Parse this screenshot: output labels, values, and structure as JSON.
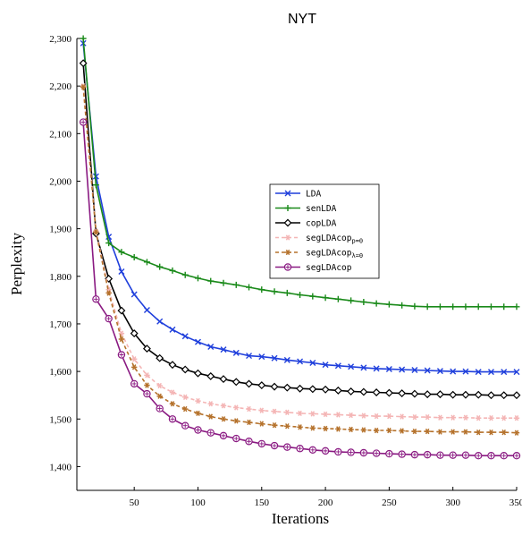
{
  "chart_data": {
    "type": "line",
    "title": "NYT",
    "xlabel": "Iterations",
    "ylabel": "Perplexity",
    "xlim": [
      5,
      350
    ],
    "ylim": [
      1350,
      2300
    ],
    "xticks": [
      50,
      100,
      150,
      200,
      250,
      300,
      350
    ],
    "yticks": [
      1400,
      1500,
      1600,
      1700,
      1800,
      1900,
      2000,
      2100,
      2200,
      2300
    ],
    "xtick_labels": [
      "50",
      "100",
      "150",
      "200",
      "250",
      "300",
      "350"
    ],
    "ytick_labels": [
      "1,400",
      "1,500",
      "1,600",
      "1,700",
      "1,800",
      "1,900",
      "2,000",
      "2,100",
      "2,200",
      "2,300"
    ],
    "grid": false,
    "legend_position": "center-right",
    "x": [
      10,
      20,
      30,
      40,
      50,
      60,
      70,
      80,
      90,
      100,
      110,
      120,
      130,
      140,
      150,
      160,
      170,
      180,
      190,
      200,
      210,
      220,
      230,
      240,
      250,
      260,
      270,
      280,
      290,
      300,
      310,
      320,
      330,
      340,
      350
    ],
    "series": [
      {
        "name": "LDA",
        "color": "#1f3fdc",
        "marker": "x",
        "dashed": false,
        "values": [
          2290,
          2010,
          1883,
          1810,
          1762,
          1729,
          1705,
          1688,
          1674,
          1662,
          1652,
          1646,
          1639,
          1633,
          1631,
          1628,
          1624,
          1621,
          1618,
          1614,
          1612,
          1610,
          1608,
          1606,
          1605,
          1604,
          1603,
          1602,
          1601,
          1600,
          1600,
          1599,
          1599,
          1599,
          1599
        ]
      },
      {
        "name": "senLDA",
        "color": "#1a8a1a",
        "marker": "plus",
        "dashed": false,
        "values": [
          2300,
          1992,
          1870,
          1851,
          1840,
          1830,
          1820,
          1812,
          1803,
          1796,
          1790,
          1786,
          1782,
          1777,
          1772,
          1768,
          1765,
          1761,
          1758,
          1755,
          1752,
          1749,
          1746,
          1743,
          1741,
          1739,
          1737,
          1736,
          1736,
          1736,
          1736,
          1736,
          1736,
          1736,
          1736
        ]
      },
      {
        "name": "copLDA",
        "color": "#000000",
        "marker": "diamond",
        "dashed": false,
        "values": [
          2248,
          1890,
          1795,
          1728,
          1680,
          1648,
          1628,
          1614,
          1604,
          1596,
          1590,
          1584,
          1578,
          1574,
          1571,
          1568,
          1566,
          1564,
          1563,
          1562,
          1560,
          1558,
          1557,
          1556,
          1555,
          1554,
          1553,
          1552,
          1552,
          1551,
          1551,
          1551,
          1550,
          1550,
          1550
        ]
      },
      {
        "name": "segLDAcop",
        "name_sub": "p=0",
        "color": "#f4b5b5",
        "marker": "star",
        "dashed": true,
        "values": [
          2200,
          1895,
          1772,
          1680,
          1626,
          1592,
          1570,
          1556,
          1546,
          1538,
          1532,
          1528,
          1524,
          1521,
          1518,
          1516,
          1514,
          1512,
          1511,
          1510,
          1509,
          1508,
          1507,
          1506,
          1506,
          1505,
          1504,
          1504,
          1503,
          1503,
          1503,
          1502,
          1502,
          1502,
          1502
        ]
      },
      {
        "name": "segLDAcop",
        "name_sub": "λ=0",
        "color": "#b5722c",
        "marker": "star",
        "dashed": true,
        "values": [
          2198,
          1893,
          1765,
          1668,
          1609,
          1571,
          1548,
          1532,
          1521,
          1512,
          1505,
          1500,
          1496,
          1493,
          1490,
          1487,
          1485,
          1483,
          1481,
          1480,
          1479,
          1478,
          1477,
          1476,
          1476,
          1475,
          1474,
          1474,
          1473,
          1473,
          1473,
          1472,
          1472,
          1472,
          1471
        ]
      },
      {
        "name": "segLDAcop",
        "color": "#8a1a82",
        "marker": "circle",
        "dashed": false,
        "values": [
          2124,
          1752,
          1711,
          1635,
          1574,
          1553,
          1522,
          1500,
          1486,
          1477,
          1471,
          1465,
          1459,
          1453,
          1448,
          1444,
          1441,
          1438,
          1435,
          1433,
          1431,
          1430,
          1429,
          1428,
          1427,
          1426,
          1425,
          1425,
          1424,
          1424,
          1424,
          1423,
          1423,
          1423,
          1423
        ]
      }
    ]
  }
}
